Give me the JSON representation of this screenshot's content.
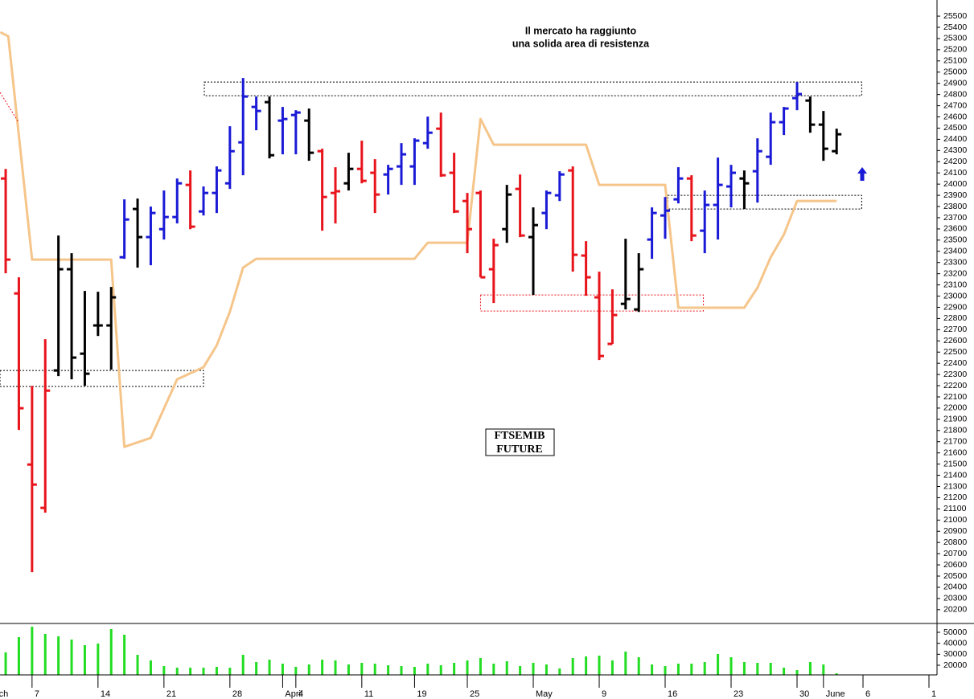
{
  "chart_data": [
    {
      "type": "ohlc",
      "annotation": [
        "Il mercato ha raggiunto",
        "una solida area di resistenza"
      ],
      "label": [
        "FTSEMIB",
        "FUTURE"
      ],
      "x": [
        0,
        1,
        2,
        3,
        4,
        5,
        6,
        7,
        8,
        9,
        10,
        11,
        12,
        13,
        14,
        15,
        16,
        17,
        18,
        19,
        20,
        21,
        22,
        23,
        24,
        25,
        26,
        27,
        28,
        29,
        30,
        31,
        32,
        33,
        34,
        35,
        36,
        37,
        38,
        39,
        40,
        41,
        42,
        43,
        44,
        45,
        46,
        47,
        48,
        49,
        50,
        51,
        52,
        53,
        54,
        55,
        56,
        57,
        58,
        59,
        60,
        61,
        62,
        63
      ],
      "open": [
        24050,
        23024,
        21496,
        21109,
        22336,
        23240,
        22486,
        22738,
        22738,
        23347,
        23778,
        23527,
        23598,
        23706,
        23993,
        23756,
        23921,
        24007,
        24373,
        24689,
        24732,
        24567,
        24617,
        24567,
        24294,
        23921,
        24007,
        24136,
        24101,
        24086,
        24158,
        24158,
        24366,
        24495,
        24101,
        23849,
        23921,
        23240,
        23598,
        23957,
        23527,
        23742,
        23900,
        24122,
        23362,
        22989,
        22573,
        22931,
        22881,
        23505,
        23720,
        23864,
        24050,
        23584,
        23814,
        23979,
        24050,
        24115,
        24244,
        24553,
        24768,
        24746,
        24531,
        24294
      ],
      "high": [
        24136,
        23168,
        22199,
        22616,
        23541,
        23383,
        23046,
        23039,
        23082,
        23864,
        23871,
        23799,
        23943,
        24050,
        24122,
        23979,
        24158,
        24517,
        24947,
        24782,
        24782,
        24689,
        24660,
        24675,
        24316,
        24151,
        24280,
        24388,
        24223,
        24172,
        24366,
        24409,
        24603,
        24639,
        24280,
        23921,
        23943,
        23512,
        23993,
        24086,
        23792,
        23943,
        24115,
        24158,
        23491,
        23218,
        23060,
        23512,
        23383,
        23792,
        23885,
        24151,
        24079,
        23943,
        24237,
        24172,
        24122,
        24409,
        24639,
        24689,
        24911,
        24782,
        24653,
        24495
      ],
      "low": [
        23204,
        21805,
        20535,
        21066,
        22286,
        22257,
        22199,
        22644,
        22343,
        23333,
        23254,
        23276,
        23505,
        23649,
        23598,
        23720,
        23742,
        23957,
        24079,
        24481,
        24230,
        24266,
        24266,
        24208,
        23584,
        23649,
        23943,
        24007,
        23742,
        23907,
        23993,
        23993,
        24316,
        24065,
        23742,
        23383,
        23168,
        22938,
        23476,
        23527,
        23010,
        23598,
        23849,
        23218,
        23003,
        22429,
        22573,
        22881,
        22859,
        23333,
        23512,
        23828,
        23491,
        23383,
        23505,
        23792,
        23778,
        23835,
        24172,
        24438,
        24660,
        24459,
        24208,
        24266
      ],
      "close": [
        23326,
        21999,
        21317,
        22156,
        23240,
        22451,
        22307,
        22738,
        22989,
        23684,
        23527,
        23742,
        23706,
        24007,
        23620,
        23921,
        24122,
        24294,
        24782,
        24653,
        24258,
        24581,
        24639,
        24280,
        23885,
        23936,
        24136,
        24029,
        23907,
        24136,
        24266,
        24388,
        24459,
        24079,
        23756,
        23598,
        23168,
        23455,
        23907,
        23541,
        23634,
        23921,
        24086,
        23369,
        23168,
        22465,
        22831,
        22974,
        23240,
        23742,
        23763,
        24050,
        23541,
        23814,
        23993,
        24101,
        24007,
        24294,
        24553,
        24675,
        24804,
        24531,
        24316,
        24445
      ],
      "colors": [
        "#e8141c",
        "#e8141c",
        "#e8141c",
        "#e8141c",
        "#000000",
        "#000000",
        "#000000",
        "#000000",
        "#000000",
        "#1a1ad6",
        "#000000",
        "#1a1ad6",
        "#1a1ad6",
        "#1a1ad6",
        "#e8141c",
        "#1a1ad6",
        "#1a1ad6",
        "#1a1ad6",
        "#1a1ad6",
        "#1a1ad6",
        "#000000",
        "#1a1ad6",
        "#1a1ad6",
        "#000000",
        "#e8141c",
        "#e8141c",
        "#000000",
        "#e8141c",
        "#e8141c",
        "#1a1ad6",
        "#1a1ad6",
        "#1a1ad6",
        "#1a1ad6",
        "#e8141c",
        "#e8141c",
        "#e8141c",
        "#e8141c",
        "#e8141c",
        "#000000",
        "#e8141c",
        "#000000",
        "#1a1ad6",
        "#1a1ad6",
        "#e8141c",
        "#e8141c",
        "#e8141c",
        "#e8141c",
        "#000000",
        "#000000",
        "#1a1ad6",
        "#1a1ad6",
        "#1a1ad6",
        "#e8141c",
        "#1a1ad6",
        "#1a1ad6",
        "#1a1ad6",
        "#000000",
        "#1a1ad6",
        "#1a1ad6",
        "#1a1ad6",
        "#1a1ad6",
        "#000000",
        "#000000",
        "#000000"
      ],
      "overlay": {
        "type": "line",
        "color": "#f5c58a",
        "x": [
          -0.4,
          0.2,
          2,
          8,
          9,
          11,
          13,
          15,
          16,
          17,
          18,
          19,
          31,
          32,
          35,
          36,
          37,
          44,
          45,
          50,
          51,
          56,
          57,
          58,
          59,
          60,
          63
        ],
        "values": [
          25356,
          25320,
          23326,
          23326,
          21654,
          21733,
          22257,
          22365,
          22559,
          22860,
          23254,
          23333,
          23333,
          23477,
          23477,
          24582,
          24352,
          24352,
          23993,
          23993,
          22896,
          22896,
          23075,
          23347,
          23549,
          23850,
          23850
        ]
      },
      "zones": [
        {
          "x": [
            15.06,
            64.9
          ],
          "y": [
            24789,
            24911
          ],
          "color": "#000000"
        },
        {
          "x": [
            -0.43,
            15
          ],
          "y": [
            22193,
            22336
          ],
          "color": "#000000"
        },
        {
          "x": [
            36,
            52.9
          ],
          "y": [
            22867,
            23010
          ],
          "color": "#e8141c"
        },
        {
          "x": [
            50.2,
            64.9
          ],
          "y": [
            23778,
            23900
          ],
          "color": "#000000"
        }
      ],
      "xlim": [
        -0.43,
        70.61
      ],
      "ylim": [
        20084,
        25644
      ],
      "yticks": [
        20200,
        20300,
        20400,
        20500,
        20600,
        20700,
        20800,
        20900,
        21000,
        21100,
        21200,
        21300,
        21400,
        21500,
        21600,
        21700,
        21800,
        21900,
        22000,
        22100,
        22200,
        22300,
        22400,
        22500,
        22600,
        22700,
        22800,
        22900,
        23000,
        23100,
        23200,
        23300,
        23400,
        23500,
        23600,
        23700,
        23800,
        23900,
        24000,
        24100,
        24200,
        24300,
        24400,
        24500,
        24600,
        24700,
        24800,
        24900,
        25000,
        25100,
        25200,
        25300,
        25400,
        25500
      ]
    },
    {
      "type": "bar",
      "x": [
        0,
        1,
        2,
        3,
        4,
        5,
        6,
        7,
        8,
        9,
        10,
        11,
        12,
        13,
        14,
        15,
        16,
        17,
        18,
        19,
        20,
        21,
        22,
        23,
        24,
        25,
        26,
        27,
        28,
        29,
        30,
        31,
        32,
        33,
        34,
        35,
        36,
        37,
        38,
        39,
        40,
        41,
        42,
        43,
        44,
        45,
        46,
        47,
        48,
        49,
        50,
        51,
        52,
        53,
        54,
        55,
        56,
        57,
        58,
        59,
        60,
        61,
        62,
        63
      ],
      "values": [
        31710,
        45610,
        55120,
        48540,
        46340,
        43420,
        38300,
        39760,
        52930,
        47810,
        29520,
        24400,
        19270,
        17810,
        17810,
        17810,
        18540,
        17810,
        29520,
        22930,
        25130,
        21470,
        18540,
        20740,
        25130,
        24400,
        20740,
        22200,
        21470,
        20000,
        19270,
        18540,
        21470,
        20000,
        22200,
        24400,
        26590,
        21470,
        23670,
        19270,
        22200,
        20740,
        17080,
        26590,
        28060,
        28790,
        24400,
        32440,
        27320,
        20740,
        19270,
        21470,
        21470,
        22930,
        30250,
        27320,
        22930,
        22200,
        22200,
        17810,
        15620,
        22930,
        20740,
        12700
      ],
      "color": "#22dd22",
      "xlim": [
        -0.43,
        70.61
      ],
      "ylim": [
        11230,
        57315
      ],
      "yticks": [
        20000,
        30000,
        40000,
        50000
      ],
      "xticks": [
        {
          "value": -0.7,
          "label": "ch"
        },
        {
          "value": 2,
          "label": "7"
        },
        {
          "value": 7,
          "label": "14"
        },
        {
          "value": 12,
          "label": "21"
        },
        {
          "value": 17,
          "label": "28"
        },
        {
          "value": 21,
          "label": "April"
        },
        {
          "value": 22,
          "label": "4"
        },
        {
          "value": 27,
          "label": "11"
        },
        {
          "value": 31,
          "label": "19"
        },
        {
          "value": 35,
          "label": "25"
        },
        {
          "value": 40,
          "label": "May"
        },
        {
          "value": 45,
          "label": "9"
        },
        {
          "value": 50,
          "label": "16"
        },
        {
          "value": 55,
          "label": "23"
        },
        {
          "value": 60,
          "label": "30"
        },
        {
          "value": 62,
          "label": "June"
        },
        {
          "value": 65,
          "label": "6"
        },
        {
          "value": 70,
          "label": "1"
        }
      ]
    }
  ]
}
